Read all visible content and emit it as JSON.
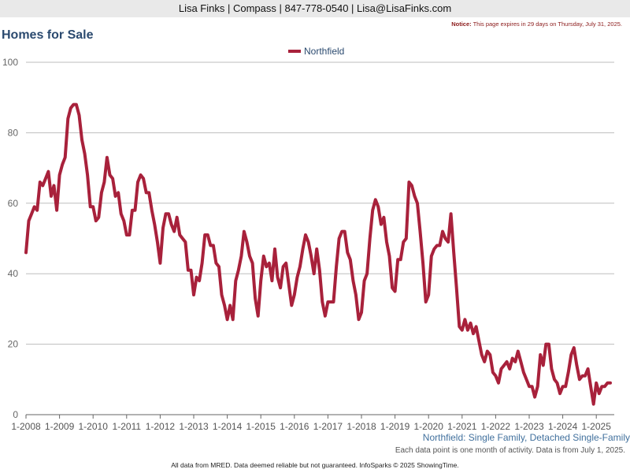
{
  "header": {
    "contact": "Lisa Finks | Compass | 847-778-0540 | Lisa@LisaFinks.com",
    "notice_label": "Notice:",
    "notice_text": " This page expires in 29 days on Thursday, July 31, 2025."
  },
  "page_title": "Homes for Sale",
  "subtitle": "Northfield: Single Family, Detached Single-Family",
  "note": "Each data point is one month of activity. Data is from July 1, 2025.",
  "footer": "All data from MRED. Data deemed reliable but not guaranteed. InfoSparks © 2025 ShowingTime.",
  "chart_data": {
    "type": "line",
    "title": "Homes for Sale",
    "xlabel": "",
    "ylabel": "",
    "ylim": [
      0,
      100
    ],
    "yticks": [
      0,
      20,
      40,
      60,
      80,
      100
    ],
    "xticks": [
      "1-2008",
      "1-2009",
      "1-2010",
      "1-2011",
      "1-2012",
      "1-2013",
      "1-2014",
      "1-2015",
      "1-2016",
      "1-2017",
      "1-2018",
      "1-2019",
      "1-2020",
      "1-2021",
      "1-2022",
      "1-2023",
      "1-2024",
      "1-2025"
    ],
    "x_start": "1-2008",
    "grid": true,
    "legend": "top-center",
    "series": [
      {
        "name": "Northfield",
        "color": "#a8213b",
        "values": [
          46,
          55,
          57,
          59,
          58,
          66,
          65,
          67,
          69,
          62,
          65,
          58,
          68,
          71,
          73,
          84,
          87,
          88,
          88,
          85,
          78,
          74,
          68,
          59,
          59,
          55,
          56,
          63,
          66,
          73,
          68,
          67,
          62,
          63,
          57,
          55,
          51,
          51,
          58,
          58,
          66,
          68,
          67,
          63,
          63,
          58,
          54,
          49,
          43,
          53,
          57,
          57,
          54,
          52,
          56,
          51,
          50,
          49,
          41,
          41,
          34,
          39,
          38,
          43,
          51,
          51,
          48,
          48,
          43,
          42,
          34,
          31,
          27,
          31,
          27,
          38,
          41,
          45,
          52,
          49,
          45,
          43,
          33,
          28,
          38,
          45,
          42,
          43,
          38,
          47,
          39,
          36,
          42,
          43,
          37,
          31,
          34,
          39,
          42,
          47,
          51,
          49,
          45,
          40,
          47,
          41,
          32,
          28,
          32,
          32,
          32,
          42,
          50,
          52,
          52,
          46,
          44,
          38,
          34,
          27,
          29,
          38,
          40,
          50,
          58,
          61,
          59,
          54,
          56,
          49,
          45,
          36,
          35,
          44,
          44,
          49,
          50,
          66,
          65,
          62,
          60,
          52,
          43,
          32,
          34,
          45,
          47,
          48,
          48,
          52,
          50,
          49,
          57,
          46,
          36,
          25,
          24,
          27,
          24,
          26,
          23,
          25,
          21,
          17,
          15,
          18,
          17,
          12,
          11,
          9,
          13,
          14,
          15,
          13,
          16,
          15,
          18,
          15,
          12,
          10,
          8,
          8,
          5,
          8,
          17,
          14,
          20,
          20,
          13,
          10,
          9,
          6,
          8,
          8,
          12,
          17,
          19,
          14,
          10,
          11,
          11,
          13,
          8,
          3,
          9,
          6,
          8,
          8,
          9,
          9
        ]
      }
    ]
  }
}
